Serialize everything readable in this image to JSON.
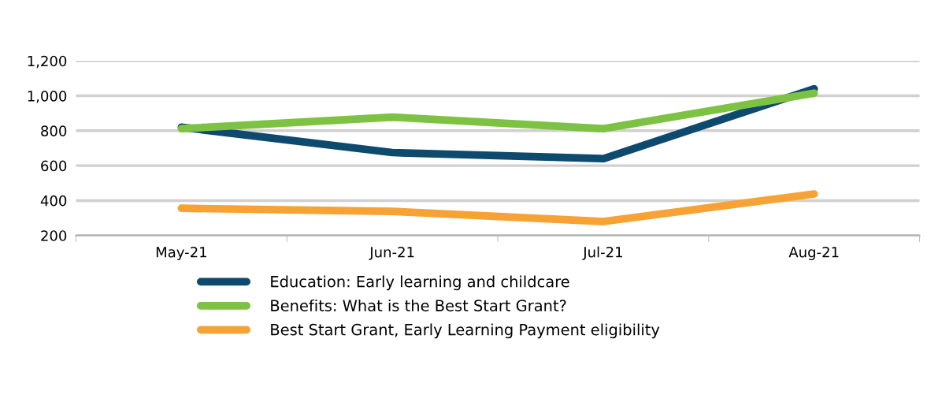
{
  "chart_data": {
    "type": "line",
    "categories": [
      "May-21",
      "Jun-21",
      "Jul-21",
      "Aug-21"
    ],
    "series": [
      {
        "name": "Education: Early learning and childcare",
        "color": "#0e4a6e",
        "values": [
          820,
          675,
          640,
          1040
        ]
      },
      {
        "name": "Benefits: What is the Best Start Grant?",
        "color": "#7dc242",
        "values": [
          812,
          878,
          812,
          1015
        ]
      },
      {
        "name": "Best Start Grant, Early Learning Payment eligibility",
        "color": "#f7a234",
        "values": [
          356,
          338,
          280,
          438
        ]
      }
    ],
    "ylim": [
      200,
      1200
    ],
    "yticks": [
      {
        "value": 200,
        "label": "200"
      },
      {
        "value": 400,
        "label": "400"
      },
      {
        "value": 600,
        "label": "600"
      },
      {
        "value": 800,
        "label": "800"
      },
      {
        "value": 1000,
        "label": "1,000"
      },
      {
        "value": 1200,
        "label": "1,200"
      }
    ],
    "grid": "y",
    "legend": "bottom",
    "marker": "none",
    "line_style": "solid"
  }
}
